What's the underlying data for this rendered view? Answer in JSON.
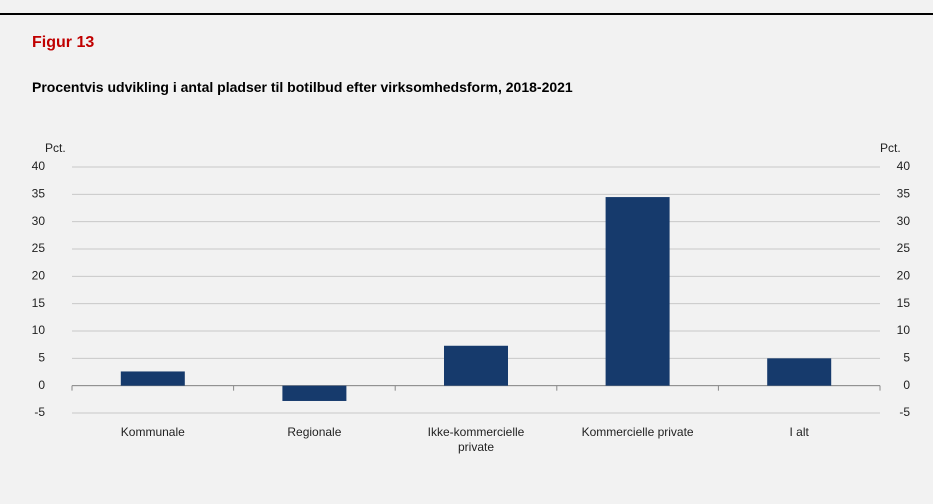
{
  "chart_data": {
    "type": "bar",
    "figure_label": "Figur 13",
    "title": "Procentvis udvikling i antal pladser til botilbud efter virksomhedsform, 2018-2021",
    "y_label": "Pct.",
    "y2_label": "Pct.",
    "categories": [
      "Kommunale",
      "Regionale",
      "Ikke-kommercielle private",
      "Kommercielle private",
      "I alt"
    ],
    "values": [
      2.6,
      -2.8,
      7.3,
      34.5,
      5.0
    ],
    "color": "#163a6c",
    "ylim": [
      -5,
      40
    ],
    "yticks": [
      -5,
      0,
      5,
      10,
      15,
      20,
      25,
      30,
      35,
      40
    ],
    "y2lim": [
      -5,
      40
    ],
    "y2ticks": [
      -5,
      0,
      5,
      10,
      15,
      20,
      25,
      30,
      35,
      40
    ],
    "grid": true
  }
}
